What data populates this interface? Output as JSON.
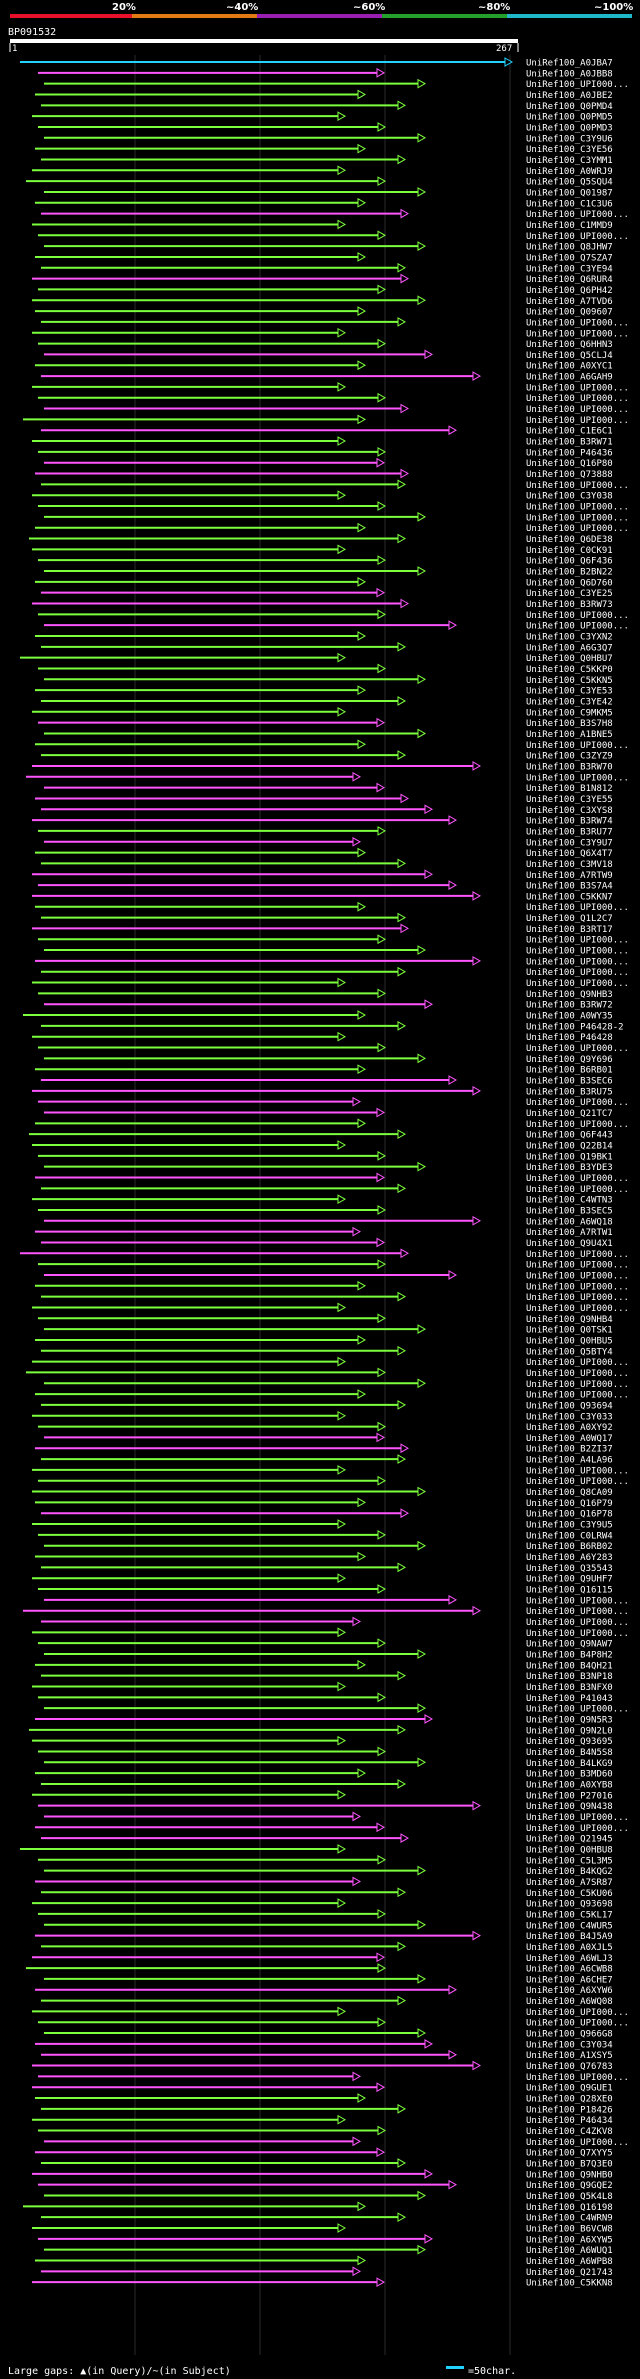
{
  "query_name": "BP091532",
  "ruler": {
    "start": "1",
    "end": "267"
  },
  "identity_scale": {
    "labels": [
      "20%",
      "~40%",
      "~60%",
      "~80%",
      "~100%"
    ],
    "colors": [
      "#e8102a",
      "#e07a12",
      "#9a1fb0",
      "#22a02a",
      "#1fb8c8"
    ]
  },
  "colors": {
    "green": "#7cff3c",
    "magenta": "#ff55ff",
    "cyan": "#22d3ff",
    "white": "#ffffff",
    "background": "#000000"
  },
  "footer": {
    "legend": "Large gaps: ▲(in Query)/~(in Subject)",
    "scale_label": "=50char."
  },
  "hits": [
    {
      "id": "UniRef100_A0JBA7",
      "color": "cyan"
    },
    {
      "id": "UniRef100_A0JBB8",
      "color": "magenta"
    },
    {
      "id": "UniRef100_UPI000...",
      "color": "green"
    },
    {
      "id": "UniRef100_A0JBE2",
      "color": "green"
    },
    {
      "id": "UniRef100_Q0PMD4",
      "color": "green"
    },
    {
      "id": "UniRef100_Q0PMD5",
      "color": "green"
    },
    {
      "id": "UniRef100_Q0PMD3",
      "color": "green"
    },
    {
      "id": "UniRef100_C3Y9U6",
      "color": "green"
    },
    {
      "id": "UniRef100_C3YE56",
      "color": "green"
    },
    {
      "id": "UniRef100_C3YMM1",
      "color": "green"
    },
    {
      "id": "UniRef100_A0WRJ9",
      "color": "green"
    },
    {
      "id": "UniRef100_Q5SQU4",
      "color": "green"
    },
    {
      "id": "UniRef100_Q01987",
      "color": "green"
    },
    {
      "id": "UniRef100_C1C3U6",
      "color": "green"
    },
    {
      "id": "UniRef100_UPI000...",
      "color": "magenta"
    },
    {
      "id": "UniRef100_C1MMD9",
      "color": "green"
    },
    {
      "id": "UniRef100_UPI000...",
      "color": "green"
    },
    {
      "id": "UniRef100_Q8JHW7",
      "color": "green"
    },
    {
      "id": "UniRef100_Q7SZA7",
      "color": "green"
    },
    {
      "id": "UniRef100_C3YE94",
      "color": "green"
    },
    {
      "id": "UniRef100_Q6RUR4",
      "color": "magenta"
    },
    {
      "id": "UniRef100_Q6PH42",
      "color": "green"
    },
    {
      "id": "UniRef100_A7TVD6",
      "color": "green"
    },
    {
      "id": "UniRef100_Q09607",
      "color": "green"
    },
    {
      "id": "UniRef100_UPI000...",
      "color": "green"
    },
    {
      "id": "UniRef100_UPI000...",
      "color": "green"
    },
    {
      "id": "UniRef100_Q6HHN3",
      "color": "green"
    },
    {
      "id": "UniRef100_Q5CLJ4",
      "color": "magenta"
    },
    {
      "id": "UniRef100_A0XYC1",
      "color": "green"
    },
    {
      "id": "UniRef100_A6GAH9",
      "color": "magenta"
    },
    {
      "id": "UniRef100_UPI000...",
      "color": "green"
    },
    {
      "id": "UniRef100_UPI000...",
      "color": "green"
    },
    {
      "id": "UniRef100_UPI000...",
      "color": "magenta"
    },
    {
      "id": "UniRef100_UPI000...",
      "color": "green"
    },
    {
      "id": "UniRef100_C1E6C1",
      "color": "magenta"
    },
    {
      "id": "UniRef100_B3RW71",
      "color": "green"
    },
    {
      "id": "UniRef100_P46436",
      "color": "green"
    },
    {
      "id": "UniRef100_Q16P80",
      "color": "magenta"
    },
    {
      "id": "UniRef100_Q73888",
      "color": "magenta"
    },
    {
      "id": "UniRef100_UPI000...",
      "color": "green"
    },
    {
      "id": "UniRef100_C3Y038",
      "color": "green"
    },
    {
      "id": "UniRef100_UPI000...",
      "color": "green"
    },
    {
      "id": "UniRef100_UPI000...",
      "color": "green"
    },
    {
      "id": "UniRef100_UPI000...",
      "color": "green"
    },
    {
      "id": "UniRef100_Q6DE38",
      "color": "green"
    },
    {
      "id": "UniRef100_C0CK91",
      "color": "green"
    },
    {
      "id": "UniRef100_Q6F436",
      "color": "green"
    },
    {
      "id": "UniRef100_B2BN22",
      "color": "green"
    },
    {
      "id": "UniRef100_Q6D760",
      "color": "green"
    },
    {
      "id": "UniRef100_C3YE25",
      "color": "magenta"
    },
    {
      "id": "UniRef100_B3RW73",
      "color": "magenta"
    },
    {
      "id": "UniRef100_UPI000...",
      "color": "green"
    },
    {
      "id": "UniRef100_UPI000...",
      "color": "magenta"
    },
    {
      "id": "UniRef100_C3YXN2",
      "color": "green"
    },
    {
      "id": "UniRef100_A6G3Q7",
      "color": "green"
    },
    {
      "id": "UniRef100_Q0HBU7",
      "color": "green"
    },
    {
      "id": "UniRef100_C5KKP0",
      "color": "green"
    },
    {
      "id": "UniRef100_C5KKN5",
      "color": "green"
    },
    {
      "id": "UniRef100_C3YE53",
      "color": "green"
    },
    {
      "id": "UniRef100_C3YE42",
      "color": "green"
    },
    {
      "id": "UniRef100_C9MKM5",
      "color": "green"
    },
    {
      "id": "UniRef100_B3S7H8",
      "color": "magenta"
    },
    {
      "id": "UniRef100_A1BNE5",
      "color": "green"
    },
    {
      "id": "UniRef100_UPI000...",
      "color": "green"
    },
    {
      "id": "UniRef100_C3ZYZ9",
      "color": "green"
    },
    {
      "id": "UniRef100_B3RW70",
      "color": "magenta"
    },
    {
      "id": "UniRef100_UPI000...",
      "color": "magenta"
    },
    {
      "id": "UniRef100_B1N812",
      "color": "magenta"
    },
    {
      "id": "UniRef100_C3YE55",
      "color": "magenta"
    },
    {
      "id": "UniRef100_C3XYS8",
      "color": "magenta"
    },
    {
      "id": "UniRef100_B3RW74",
      "color": "magenta"
    },
    {
      "id": "UniRef100_B3RU77",
      "color": "green"
    },
    {
      "id": "UniRef100_C3Y9U7",
      "color": "magenta"
    },
    {
      "id": "UniRef100_Q6X4T7",
      "color": "green"
    },
    {
      "id": "UniRef100_C3MV18",
      "color": "green"
    },
    {
      "id": "UniRef100_A7RTW9",
      "color": "magenta"
    },
    {
      "id": "UniRef100_B3S7A4",
      "color": "magenta"
    },
    {
      "id": "UniRef100_C5KKN7",
      "color": "magenta"
    },
    {
      "id": "UniRef100_UPI000...",
      "color": "green"
    },
    {
      "id": "UniRef100_Q1L2C7",
      "color": "green"
    },
    {
      "id": "UniRef100_B3RT17",
      "color": "magenta"
    },
    {
      "id": "UniRef100_UPI000...",
      "color": "green"
    },
    {
      "id": "UniRef100_UPI000...",
      "color": "green"
    },
    {
      "id": "UniRef100_UPI000...",
      "color": "magenta"
    },
    {
      "id": "UniRef100_UPI000...",
      "color": "green"
    },
    {
      "id": "UniRef100_UPI000...",
      "color": "green"
    },
    {
      "id": "UniRef100_Q9NHB3",
      "color": "green"
    },
    {
      "id": "UniRef100_B3RW72",
      "color": "magenta"
    },
    {
      "id": "UniRef100_A0WY35",
      "color": "green"
    },
    {
      "id": "UniRef100_P46428-2",
      "color": "green"
    },
    {
      "id": "UniRef100_P46428",
      "color": "green"
    },
    {
      "id": "UniRef100_UPI000...",
      "color": "green"
    },
    {
      "id": "UniRef100_Q9Y696",
      "color": "green"
    },
    {
      "id": "UniRef100_B6RB01",
      "color": "green"
    },
    {
      "id": "UniRef100_B3SEC6",
      "color": "magenta"
    },
    {
      "id": "UniRef100_B3RU75",
      "color": "magenta"
    },
    {
      "id": "UniRef100_UPI000...",
      "color": "magenta"
    },
    {
      "id": "UniRef100_Q21TC7",
      "color": "magenta"
    },
    {
      "id": "UniRef100_UPI000...",
      "color": "green"
    },
    {
      "id": "UniRef100_Q6F443",
      "color": "green"
    },
    {
      "id": "UniRef100_Q22B14",
      "color": "green"
    },
    {
      "id": "UniRef100_Q19BK1",
      "color": "green"
    },
    {
      "id": "UniRef100_B3YDE3",
      "color": "green"
    },
    {
      "id": "UniRef100_UPI000...",
      "color": "magenta"
    },
    {
      "id": "UniRef100_UPI000...",
      "color": "green"
    },
    {
      "id": "UniRef100_C4WTN3",
      "color": "green"
    },
    {
      "id": "UniRef100_B3SEC5",
      "color": "green"
    },
    {
      "id": "UniRef100_A6WQ18",
      "color": "magenta"
    },
    {
      "id": "UniRef100_A7RTW1",
      "color": "magenta"
    },
    {
      "id": "UniRef100_Q9U4X1",
      "color": "magenta"
    },
    {
      "id": "UniRef100_UPI000...",
      "color": "magenta"
    },
    {
      "id": "UniRef100_UPI000...",
      "color": "green"
    },
    {
      "id": "UniRef100_UPI000...",
      "color": "magenta"
    },
    {
      "id": "UniRef100_UPI000...",
      "color": "green"
    },
    {
      "id": "UniRef100_UPI000...",
      "color": "green"
    },
    {
      "id": "UniRef100_UPI000...",
      "color": "green"
    },
    {
      "id": "UniRef100_Q9NHB4",
      "color": "green"
    },
    {
      "id": "UniRef100_Q0TSK1",
      "color": "green"
    },
    {
      "id": "UniRef100_Q0HBU5",
      "color": "green"
    },
    {
      "id": "UniRef100_Q5BTY4",
      "color": "green"
    },
    {
      "id": "UniRef100_UPI000...",
      "color": "green"
    },
    {
      "id": "UniRef100_UPI000...",
      "color": "green"
    },
    {
      "id": "UniRef100_UPI000...",
      "color": "green"
    },
    {
      "id": "UniRef100_UPI000...",
      "color": "green"
    },
    {
      "id": "UniRef100_Q93694",
      "color": "green"
    },
    {
      "id": "UniRef100_C3Y033",
      "color": "green"
    },
    {
      "id": "UniRef100_A0XY92",
      "color": "green"
    },
    {
      "id": "UniRef100_A0WQ17",
      "color": "magenta"
    },
    {
      "id": "UniRef100_B2ZI37",
      "color": "magenta"
    },
    {
      "id": "UniRef100_A4LA96",
      "color": "green"
    },
    {
      "id": "UniRef100_UPI000...",
      "color": "green"
    },
    {
      "id": "UniRef100_UPI000...",
      "color": "green"
    },
    {
      "id": "UniRef100_Q8CA09",
      "color": "green"
    },
    {
      "id": "UniRef100_Q16P79",
      "color": "green"
    },
    {
      "id": "UniRef100_Q16P78",
      "color": "magenta"
    },
    {
      "id": "UniRef100_C3Y9U5",
      "color": "green"
    },
    {
      "id": "UniRef100_C0LRW4",
      "color": "green"
    },
    {
      "id": "UniRef100_B6RB02",
      "color": "green"
    },
    {
      "id": "UniRef100_A6Y283",
      "color": "green"
    },
    {
      "id": "UniRef100_Q35543",
      "color": "green"
    },
    {
      "id": "UniRef100_Q9UHF7",
      "color": "green"
    },
    {
      "id": "UniRef100_Q16115",
      "color": "green"
    },
    {
      "id": "UniRef100_UPI000...",
      "color": "magenta"
    },
    {
      "id": "UniRef100_UPI000...",
      "color": "magenta"
    },
    {
      "id": "UniRef100_UPI000...",
      "color": "magenta"
    },
    {
      "id": "UniRef100_UPI000...",
      "color": "green"
    },
    {
      "id": "UniRef100_Q9NAW7",
      "color": "green"
    },
    {
      "id": "UniRef100_B4P8H2",
      "color": "green"
    },
    {
      "id": "UniRef100_B4QH21",
      "color": "green"
    },
    {
      "id": "UniRef100_B3NP18",
      "color": "green"
    },
    {
      "id": "UniRef100_B3NFX0",
      "color": "green"
    },
    {
      "id": "UniRef100_P41043",
      "color": "green"
    },
    {
      "id": "UniRef100_UPI000...",
      "color": "green"
    },
    {
      "id": "UniRef100_Q9N5R3",
      "color": "magenta"
    },
    {
      "id": "UniRef100_Q9N2L0",
      "color": "green"
    },
    {
      "id": "UniRef100_Q93695",
      "color": "green"
    },
    {
      "id": "UniRef100_B4N5S8",
      "color": "green"
    },
    {
      "id": "UniRef100_B4LKG9",
      "color": "green"
    },
    {
      "id": "UniRef100_B3MD60",
      "color": "green"
    },
    {
      "id": "UniRef100_A0XYB8",
      "color": "green"
    },
    {
      "id": "UniRef100_P27016",
      "color": "green"
    },
    {
      "id": "UniRef100_Q9N438",
      "color": "magenta"
    },
    {
      "id": "UniRef100_UPI000...",
      "color": "magenta"
    },
    {
      "id": "UniRef100_UPI000...",
      "color": "magenta"
    },
    {
      "id": "UniRef100_Q21945",
      "color": "magenta"
    },
    {
      "id": "UniRef100_Q0HBU8",
      "color": "green"
    },
    {
      "id": "UniRef100_C5L3M5",
      "color": "green"
    },
    {
      "id": "UniRef100_B4KQG2",
      "color": "green"
    },
    {
      "id": "UniRef100_A7SR87",
      "color": "magenta"
    },
    {
      "id": "UniRef100_C5KU06",
      "color": "green"
    },
    {
      "id": "UniRef100_Q93698",
      "color": "green"
    },
    {
      "id": "UniRef100_C5KL17",
      "color": "green"
    },
    {
      "id": "UniRef100_C4WUR5",
      "color": "green"
    },
    {
      "id": "UniRef100_B4J5A9",
      "color": "magenta"
    },
    {
      "id": "UniRef100_A0XJL5",
      "color": "green"
    },
    {
      "id": "UniRef100_A6WLJ3",
      "color": "magenta"
    },
    {
      "id": "UniRef100_A6CWB8",
      "color": "green"
    },
    {
      "id": "UniRef100_A6CHE7",
      "color": "green"
    },
    {
      "id": "UniRef100_A6XYW6",
      "color": "magenta"
    },
    {
      "id": "UniRef100_A6WQ08",
      "color": "green"
    },
    {
      "id": "UniRef100_UPI000...",
      "color": "green"
    },
    {
      "id": "UniRef100_UPI000...",
      "color": "green"
    },
    {
      "id": "UniRef100_Q966G8",
      "color": "green"
    },
    {
      "id": "UniRef100_C3Y034",
      "color": "magenta"
    },
    {
      "id": "UniRef100_A1XSY5",
      "color": "magenta"
    },
    {
      "id": "UniRef100_Q76783",
      "color": "magenta"
    },
    {
      "id": "UniRef100_UPI000...",
      "color": "magenta"
    },
    {
      "id": "UniRef100_Q9GUE1",
      "color": "magenta"
    },
    {
      "id": "UniRef100_Q28XE0",
      "color": "green"
    },
    {
      "id": "UniRef100_P18426",
      "color": "green"
    },
    {
      "id": "UniRef100_P46434",
      "color": "green"
    },
    {
      "id": "UniRef100_C4ZKV8",
      "color": "green"
    },
    {
      "id": "UniRef100_UPI000...",
      "color": "magenta"
    },
    {
      "id": "UniRef100_Q7XYY5",
      "color": "magenta"
    },
    {
      "id": "UniRef100_B7Q3E0",
      "color": "green"
    },
    {
      "id": "UniRef100_Q9NHB0",
      "color": "magenta"
    },
    {
      "id": "UniRef100_Q9GQE2",
      "color": "magenta"
    },
    {
      "id": "UniRef100_Q5K4L8",
      "color": "green"
    },
    {
      "id": "UniRef100_Q16198",
      "color": "green"
    },
    {
      "id": "UniRef100_C4WRN9",
      "color": "green"
    },
    {
      "id": "UniRef100_B6VCW8",
      "color": "green"
    },
    {
      "id": "UniRef100_A6XYW5",
      "color": "magenta"
    },
    {
      "id": "UniRef100_A6WUQ1",
      "color": "green"
    },
    {
      "id": "UniRef100_A6WPB8",
      "color": "green"
    },
    {
      "id": "UniRef100_Q21743",
      "color": "magenta"
    },
    {
      "id": "UniRef100_C5KKN8",
      "color": "magenta"
    }
  ]
}
